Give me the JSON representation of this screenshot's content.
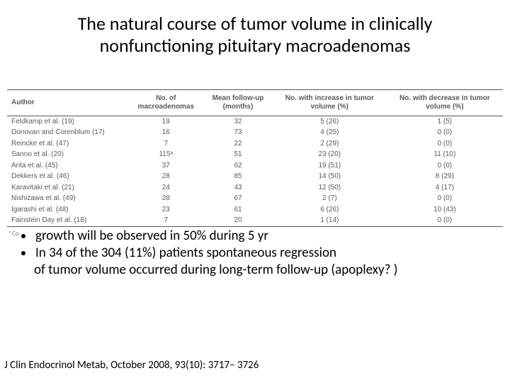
{
  "title": "The natural course of tumor volume in clinically nonfunctioning pituitary macroadenomas",
  "table": {
    "columns": [
      "Author",
      "No. of\nmacroadenomas",
      "Mean follow-up\n(months)",
      "No. with increase in tumor\nvolume (%)",
      "No. with decrease in tumor\nvolume (%)"
    ],
    "rows": [
      [
        "Feldkamp et al. (19)",
        "19",
        "32",
        "5 (26)",
        "1 (5)"
      ],
      [
        "Donovan and Corenblum (17)",
        "16",
        "73",
        "4 (25)",
        "0 (0)"
      ],
      [
        "Reincke et al. (47)",
        "7",
        "22",
        "2 (29)",
        "0 (0)"
      ],
      [
        "Sanno et al. (20)",
        "115ᵃ",
        "51",
        "23 (20)",
        "11 (10)"
      ],
      [
        "Arita et al. (45)",
        "37",
        "62",
        "19 (51)",
        "0 (0)"
      ],
      [
        "Dekkers et al. (46)",
        "28",
        "85",
        "14 (50)",
        "8 (29)"
      ],
      [
        "Karavitaki et al. (21)",
        "24",
        "43",
        "12 (50)",
        "4 (17)"
      ],
      [
        "Nishizawa et al. (49)",
        "28",
        "67",
        "2 (7)",
        "0 (0)"
      ],
      [
        "Igarashi et al. (48)",
        "23",
        "61",
        "6 (26)",
        "10 (43)"
      ],
      [
        "Fainstein Day et al. (18)",
        "7",
        "20",
        "1 (14)",
        "0 (0)"
      ]
    ],
    "footnote_marker": "ᵃ Co"
  },
  "bullets": {
    "b1": "growth will be observed in 50% during 5 yr",
    "b2": "In 34 of the 304 (11%) patients spontaneous  regression",
    "b2_cont": "of tumor volume occurred during long-term follow-up (apoplexy? )"
  },
  "citation": "J Clin Endocrinol Metab, October 2008, 93(10): 3717– 3726"
}
